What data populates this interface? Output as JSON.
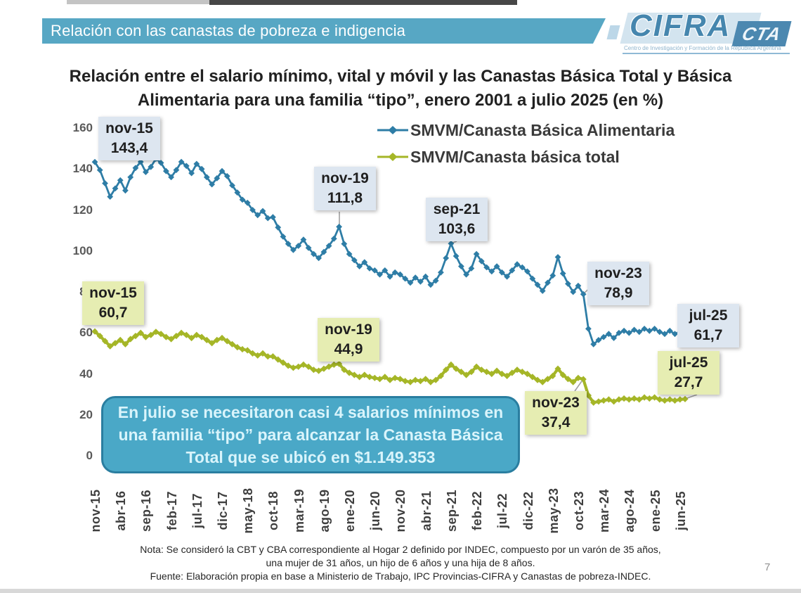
{
  "header": {
    "banner_title": "Relación con las canastas de pobreza e indigencia"
  },
  "logo": {
    "name": "CIFRA",
    "org": "CTA",
    "tagline": "Centro de Investigación y Formación de la República Argentina"
  },
  "page_number": "7",
  "colors": {
    "banner": "#57A7C4",
    "series_cba_blue": "#2E7DA6",
    "series_cbt_green": "#A5B627",
    "annotation_blue_bg": "#DDE6F0",
    "annotation_green_bg": "#E6EDB2",
    "callout_bg": "#4AA8C7",
    "callout_border": "#2A7EA0"
  },
  "chart_data": {
    "type": "line",
    "title": "Relación entre el salario mínimo, vital y móvil y las Canastas Básica Total y Básica Alimentaria para una familia “tipo”, enero 2001 a julio 2025 (en %)",
    "grid": false,
    "legend_position": "top-center",
    "ylim": [
      0,
      160
    ],
    "y_ticks": [
      160,
      140,
      120,
      100,
      80,
      60,
      40,
      20,
      0
    ],
    "x_unit": "month",
    "x_start": "nov-15",
    "x_end": "jul-25",
    "x_tick_step": 5,
    "x_tick_labels": [
      "nov-15",
      "abr-16",
      "sep-16",
      "feb-17",
      "jul-17",
      "dic-17",
      "may-18",
      "oct-18",
      "mar-19",
      "ago-19",
      "ene-20",
      "jun-20",
      "nov-20",
      "abr-21",
      "sep-21",
      "feb-22",
      "jul-22",
      "dic-22",
      "may-23",
      "oct-23",
      "mar-24",
      "ago-24",
      "ene-25",
      "jun-25"
    ],
    "series": [
      {
        "name": "SMVM/Canasta Básica Alimentaria",
        "color": "#2E7DA6",
        "values": [
          143.4,
          139.5,
          133,
          126.5,
          130.5,
          134.5,
          129.5,
          136,
          140.5,
          143.5,
          138.5,
          141,
          145,
          143,
          139,
          136,
          139.5,
          143.5,
          141.5,
          138,
          142.5,
          140,
          136,
          132.5,
          135.5,
          139,
          136.5,
          132,
          128.5,
          125,
          123.5,
          120,
          117.5,
          119.5,
          116,
          116.5,
          111.5,
          107,
          103.5,
          100.5,
          102.5,
          105.5,
          101.5,
          98.5,
          96.5,
          99.5,
          102.5,
          106,
          111.8,
          103.5,
          98.5,
          95.5,
          92.5,
          94.5,
          91.5,
          90.5,
          88.5,
          90.5,
          87.5,
          89.5,
          88.5,
          86.5,
          84.5,
          87,
          85,
          87.5,
          83.5,
          85.5,
          89.5,
          96.5,
          103.6,
          97.5,
          92.5,
          88.5,
          91.5,
          98.5,
          95,
          92,
          90,
          92.5,
          89.5,
          87.5,
          90.5,
          93.5,
          92,
          90,
          86.5,
          83.5,
          80.5,
          84.5,
          88,
          97,
          89,
          84,
          80,
          83,
          78.9,
          62,
          54.5,
          56.5,
          58,
          59.5,
          57.5,
          60,
          61,
          60,
          61.5,
          60.5,
          62,
          61,
          62,
          60.5,
          59.5,
          61,
          59.5,
          60.5,
          61.7
        ]
      },
      {
        "name": "SMVM/Canasta básica total",
        "color": "#A5B627",
        "values": [
          60.7,
          58.5,
          56,
          53.5,
          55,
          56.5,
          54.5,
          57,
          58.5,
          60,
          58,
          59,
          60.5,
          59.5,
          58,
          57,
          58.5,
          60,
          59,
          57.5,
          59,
          58,
          56.5,
          55,
          56.5,
          57.5,
          56,
          54.5,
          53,
          52,
          51.5,
          50,
          49,
          50,
          48.5,
          48.5,
          47,
          45.5,
          44,
          43,
          43.5,
          44.5,
          43.5,
          42,
          41.5,
          42.5,
          43.5,
          44.5,
          44.9,
          42,
          40.5,
          39.5,
          38.5,
          39.5,
          38.5,
          38,
          37.5,
          38.5,
          37,
          38,
          37.5,
          36.5,
          36,
          37,
          36.5,
          37.5,
          36,
          37,
          39,
          42,
          44.5,
          42.5,
          41,
          39.5,
          41,
          43.5,
          42,
          41,
          40,
          41.5,
          40,
          39,
          40.5,
          42,
          41,
          40,
          38.5,
          37,
          36,
          37.5,
          39,
          42.5,
          39.5,
          37.5,
          36,
          38,
          37.4,
          29.5,
          26,
          26.5,
          27,
          27.5,
          26.5,
          27.5,
          28,
          27.5,
          28,
          27.5,
          28.5,
          28,
          28.5,
          27.5,
          27,
          27.5,
          27,
          27.5,
          27.7
        ]
      }
    ],
    "annotations": [
      {
        "series": 0,
        "date": "nov-15",
        "display": "143,4",
        "value": 143.4,
        "month_index": 0
      },
      {
        "series": 0,
        "date": "nov-19",
        "display": "111,8",
        "value": 111.8,
        "month_index": 48
      },
      {
        "series": 0,
        "date": "sep-21",
        "display": "103,6",
        "value": 103.6,
        "month_index": 70
      },
      {
        "series": 0,
        "date": "nov-23",
        "display": "78,9",
        "value": 78.9,
        "month_index": 96
      },
      {
        "series": 0,
        "date": "jul-25",
        "display": "61,7",
        "value": 61.7,
        "month_index": 116
      },
      {
        "series": 1,
        "date": "nov-15",
        "display": "60,7",
        "value": 60.7,
        "month_index": 0
      },
      {
        "series": 1,
        "date": "nov-19",
        "display": "44,9",
        "value": 44.9,
        "month_index": 48
      },
      {
        "series": 1,
        "date": "nov-23",
        "display": "37,4",
        "value": 37.4,
        "month_index": 96
      },
      {
        "series": 1,
        "date": "jul-25",
        "display": "27,7",
        "value": 27.7,
        "month_index": 116
      }
    ],
    "callout_lines": [
      "En julio se necesitaron casi 4 salarios mínimos en",
      "una familia “tipo” para alcanzar la Canasta Básica",
      "Total que se ubicó en $1.149.353"
    ]
  },
  "footer": {
    "note_line1": "Nota: Se consideró la CBT y CBA correspondiente al Hogar 2 definido por INDEC, compuesto por un varón de 35 años,",
    "note_line2": "una mujer de 31 años, un hijo de 6 años y una hija de 8 años.",
    "source": "Fuente: Elaboración propia en base a Ministerio de Trabajo, IPC Provincias-CIFRA y Canastas de pobreza-INDEC."
  }
}
